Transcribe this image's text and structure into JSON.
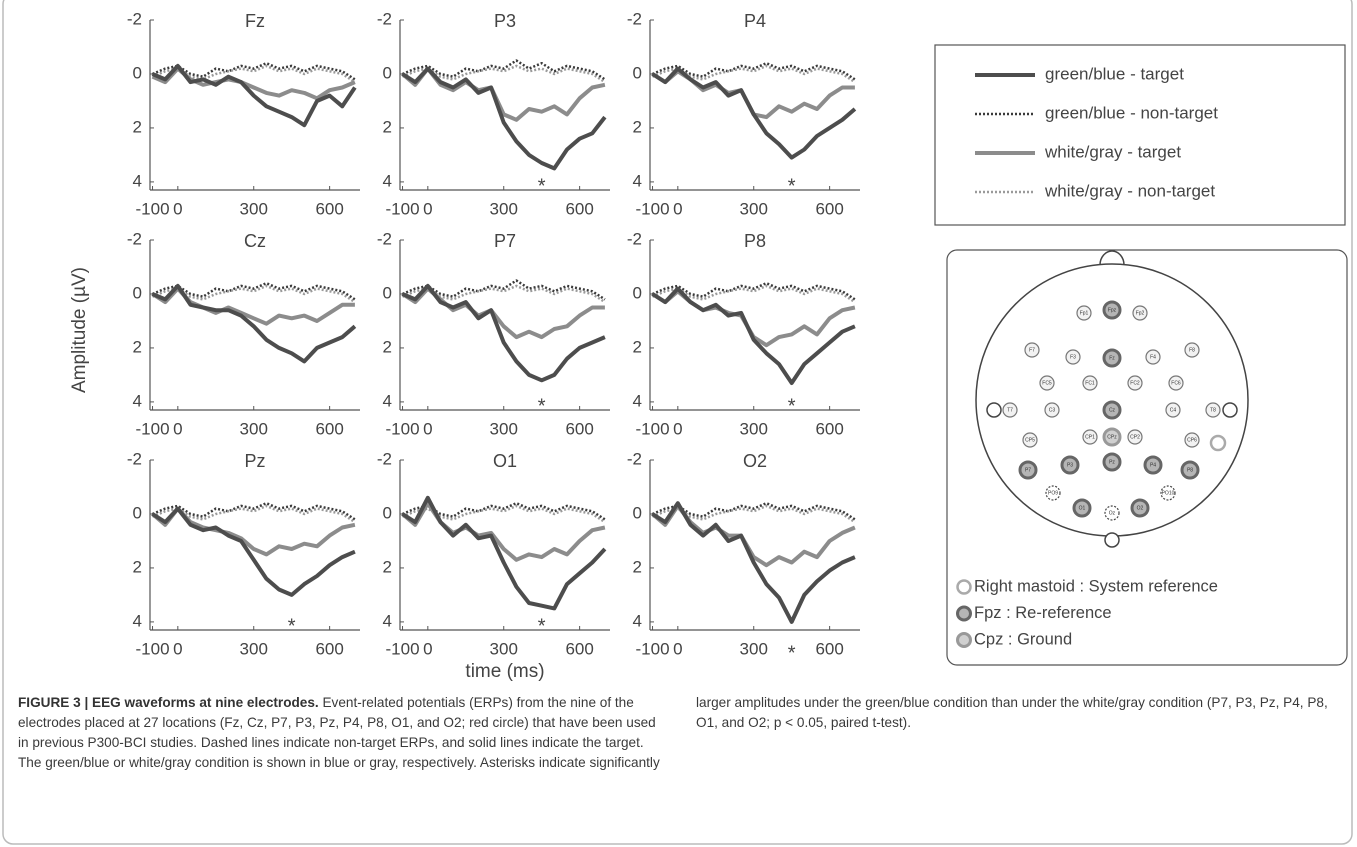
{
  "chart_data": {
    "type": "line",
    "y_label": "Amplitude (µV)",
    "x_label": "time (ms)",
    "x": [
      -100,
      -50,
      0,
      50,
      100,
      150,
      200,
      250,
      300,
      350,
      400,
      450,
      500,
      550,
      600,
      650,
      700
    ],
    "xlim": [
      -110,
      720
    ],
    "xticks": [
      -100,
      0,
      300,
      600
    ],
    "ylim": [
      -2,
      4.3
    ],
    "yticks": [
      -2,
      0,
      2,
      4
    ],
    "y_reversed": true,
    "series": [
      {
        "name": "green/blue - target",
        "color": "#4d4d4d",
        "dashed": false
      },
      {
        "name": "green/blue - non-target",
        "color": "#3a3a3a",
        "dashed": true
      },
      {
        "name": "white/gray - target",
        "color": "#8c8c8c",
        "dashed": false
      },
      {
        "name": "white/gray - non-target",
        "color": "#9a9a9a",
        "dashed": true
      }
    ],
    "panels": [
      {
        "title": "Fz",
        "values": [
          [
            0,
            0.2,
            -0.3,
            0.3,
            0.2,
            0.4,
            0.1,
            0.3,
            0.8,
            1.2,
            1.4,
            1.6,
            1.9,
            1.0,
            0.8,
            1.2,
            0.5
          ],
          [
            0,
            -0.2,
            -0.3,
            0,
            0.1,
            -0.2,
            -0.1,
            -0.3,
            -0.2,
            -0.4,
            -0.2,
            -0.3,
            -0.1,
            -0.3,
            -0.2,
            -0.1,
            0.2
          ],
          [
            0.1,
            0.3,
            -0.2,
            0.2,
            0.4,
            0.3,
            0.2,
            0.3,
            0.5,
            0.7,
            0.8,
            0.6,
            0.7,
            0.9,
            0.6,
            0.5,
            0.3
          ],
          [
            0.1,
            -0.1,
            -0.2,
            0.1,
            0.2,
            0,
            -0.1,
            -0.2,
            -0.1,
            -0.3,
            -0.1,
            -0.2,
            0,
            -0.2,
            -0.1,
            0,
            0.3
          ]
        ],
        "annotations": []
      },
      {
        "title": "P3",
        "values": [
          [
            0,
            0.3,
            -0.2,
            0.3,
            0.5,
            0.2,
            0.7,
            0.5,
            1.8,
            2.5,
            3.0,
            3.3,
            3.5,
            2.8,
            2.4,
            2.2,
            1.6
          ],
          [
            0,
            -0.2,
            -0.3,
            0,
            0.1,
            -0.2,
            -0.1,
            -0.3,
            -0.2,
            -0.5,
            -0.2,
            -0.4,
            -0.1,
            -0.3,
            -0.2,
            -0.1,
            0.2
          ],
          [
            0,
            0.4,
            -0.2,
            0.4,
            0.6,
            0.3,
            0.6,
            0.5,
            1.5,
            1.7,
            1.3,
            1.4,
            1.2,
            1.5,
            0.9,
            0.5,
            0.4
          ],
          [
            0.1,
            -0.1,
            -0.2,
            0.1,
            0.2,
            0,
            -0.1,
            -0.2,
            -0.1,
            -0.3,
            -0.1,
            -0.2,
            0,
            -0.2,
            -0.1,
            0,
            0.3
          ]
        ],
        "annotations": [
          {
            "text": "*",
            "x": 450,
            "y": 3.9
          }
        ]
      },
      {
        "title": "P4",
        "values": [
          [
            0,
            0.3,
            -0.2,
            0.2,
            0.5,
            0.3,
            0.8,
            0.6,
            1.5,
            2.2,
            2.6,
            3.1,
            2.8,
            2.3,
            2.0,
            1.7,
            1.3
          ],
          [
            0,
            -0.2,
            -0.3,
            0,
            0.1,
            -0.2,
            -0.1,
            -0.3,
            -0.2,
            -0.4,
            -0.2,
            -0.3,
            -0.1,
            -0.3,
            -0.2,
            -0.1,
            0.2
          ],
          [
            0,
            0.3,
            -0.1,
            0.2,
            0.6,
            0.4,
            0.7,
            0.6,
            1.5,
            1.6,
            1.2,
            1.4,
            1.1,
            1.3,
            0.8,
            0.5,
            0.5
          ],
          [
            0.1,
            -0.1,
            -0.2,
            0.1,
            0.2,
            0,
            -0.1,
            -0.2,
            -0.1,
            -0.3,
            -0.1,
            -0.2,
            0,
            -0.2,
            -0.1,
            0,
            0.3
          ]
        ],
        "annotations": [
          {
            "text": "*",
            "x": 450,
            "y": 3.9
          }
        ]
      },
      {
        "title": "Cz",
        "values": [
          [
            0,
            0.2,
            -0.3,
            0.4,
            0.5,
            0.6,
            0.6,
            0.8,
            1.2,
            1.7,
            2.0,
            2.2,
            2.5,
            2.0,
            1.8,
            1.6,
            1.2
          ],
          [
            0,
            -0.2,
            -0.3,
            0,
            0.1,
            -0.2,
            -0.1,
            -0.3,
            -0.2,
            -0.4,
            -0.2,
            -0.3,
            -0.1,
            -0.3,
            -0.2,
            -0.1,
            0.2
          ],
          [
            0,
            0.3,
            -0.2,
            0.3,
            0.5,
            0.7,
            0.5,
            0.7,
            0.9,
            1.1,
            0.8,
            0.9,
            0.8,
            1.0,
            0.7,
            0.4,
            0.4
          ],
          [
            0.1,
            -0.1,
            -0.2,
            0.1,
            0.2,
            0,
            -0.1,
            -0.2,
            -0.1,
            -0.3,
            -0.1,
            -0.2,
            0,
            -0.2,
            -0.1,
            0,
            0.3
          ]
        ],
        "annotations": []
      },
      {
        "title": "P7",
        "values": [
          [
            0,
            0.2,
            -0.3,
            0.3,
            0.5,
            0.3,
            0.9,
            0.6,
            1.8,
            2.5,
            3.0,
            3.2,
            3.0,
            2.4,
            2.0,
            1.8,
            1.6
          ],
          [
            0,
            -0.2,
            -0.3,
            0,
            0.1,
            -0.2,
            -0.1,
            -0.3,
            -0.2,
            -0.5,
            -0.2,
            -0.3,
            -0.1,
            -0.3,
            -0.2,
            -0.1,
            0.2
          ],
          [
            0,
            0.3,
            -0.2,
            0.2,
            0.6,
            0.4,
            0.8,
            0.6,
            1.2,
            1.6,
            1.4,
            1.6,
            1.3,
            1.2,
            0.8,
            0.5,
            0.5
          ],
          [
            0.1,
            -0.1,
            -0.2,
            0.1,
            0.2,
            0,
            -0.1,
            -0.2,
            -0.1,
            -0.3,
            -0.1,
            -0.2,
            0,
            -0.2,
            -0.1,
            0,
            0.3
          ]
        ],
        "annotations": [
          {
            "text": "*",
            "x": 450,
            "y": 3.9
          }
        ]
      },
      {
        "title": "P8",
        "values": [
          [
            0,
            0.3,
            -0.2,
            0.3,
            0.6,
            0.4,
            0.8,
            0.7,
            1.7,
            2.2,
            2.6,
            3.3,
            2.6,
            2.2,
            1.8,
            1.4,
            1.2
          ],
          [
            0,
            -0.2,
            -0.3,
            0,
            0.1,
            -0.2,
            -0.1,
            -0.3,
            -0.2,
            -0.4,
            -0.2,
            -0.3,
            -0.1,
            -0.3,
            -0.2,
            -0.1,
            0.2
          ],
          [
            0,
            0.3,
            -0.1,
            0.3,
            0.6,
            0.5,
            0.7,
            0.8,
            1.6,
            1.9,
            1.6,
            1.5,
            1.2,
            1.5,
            0.9,
            0.6,
            0.5
          ],
          [
            0.1,
            -0.1,
            -0.2,
            0.1,
            0.2,
            0,
            -0.1,
            -0.2,
            -0.1,
            -0.3,
            -0.1,
            -0.2,
            0,
            -0.2,
            -0.1,
            0,
            0.3
          ]
        ],
        "annotations": [
          {
            "text": "*",
            "x": 450,
            "y": 3.9
          }
        ]
      },
      {
        "title": "Pz",
        "values": [
          [
            0,
            0.3,
            -0.2,
            0.4,
            0.6,
            0.5,
            0.8,
            1.0,
            1.7,
            2.4,
            2.8,
            3.0,
            2.6,
            2.3,
            1.9,
            1.6,
            1.4
          ],
          [
            0,
            -0.2,
            -0.3,
            0,
            0.1,
            -0.2,
            -0.1,
            -0.3,
            -0.2,
            -0.4,
            -0.2,
            -0.3,
            -0.1,
            -0.3,
            -0.2,
            -0.1,
            0.2
          ],
          [
            0,
            0.4,
            -0.2,
            0.3,
            0.5,
            0.6,
            0.7,
            0.9,
            1.3,
            1.5,
            1.2,
            1.3,
            1.1,
            1.2,
            0.8,
            0.5,
            0.4
          ],
          [
            0.1,
            -0.1,
            -0.2,
            0.1,
            0.2,
            0,
            -0.1,
            -0.2,
            -0.1,
            -0.3,
            -0.1,
            -0.2,
            0,
            -0.2,
            -0.1,
            0,
            0.3
          ]
        ],
        "annotations": [
          {
            "text": "*",
            "x": 450,
            "y": 3.9
          }
        ]
      },
      {
        "title": "O1",
        "values": [
          [
            0,
            0.3,
            -0.6,
            0.3,
            0.8,
            0.4,
            0.9,
            0.8,
            1.8,
            2.7,
            3.3,
            3.4,
            3.5,
            2.6,
            2.2,
            1.8,
            1.3
          ],
          [
            0,
            -0.2,
            -0.3,
            0,
            0.1,
            -0.2,
            -0.1,
            -0.3,
            -0.2,
            -0.4,
            -0.2,
            -0.3,
            -0.1,
            -0.3,
            -0.2,
            -0.1,
            0.2
          ],
          [
            0,
            0.4,
            -0.4,
            0.3,
            0.7,
            0.5,
            0.8,
            0.7,
            1.3,
            1.7,
            1.5,
            1.6,
            1.3,
            1.5,
            1.0,
            0.6,
            0.5
          ],
          [
            0.1,
            -0.1,
            -0.2,
            0.1,
            0.2,
            0,
            -0.1,
            -0.2,
            -0.1,
            -0.3,
            -0.1,
            -0.2,
            0,
            -0.2,
            -0.1,
            0,
            0.3
          ]
        ],
        "annotations": [
          {
            "text": "*",
            "x": 450,
            "y": 3.9
          }
        ]
      },
      {
        "title": "O2",
        "values": [
          [
            0,
            0.3,
            -0.4,
            0.4,
            0.8,
            0.4,
            1.0,
            0.8,
            1.8,
            2.6,
            3.1,
            4.0,
            3.0,
            2.5,
            2.1,
            1.8,
            1.6
          ],
          [
            0,
            -0.2,
            -0.3,
            0,
            0.1,
            -0.2,
            -0.1,
            -0.3,
            -0.2,
            -0.4,
            -0.2,
            -0.3,
            -0.1,
            -0.3,
            -0.2,
            -0.1,
            0.2
          ],
          [
            0,
            0.4,
            -0.3,
            0.3,
            0.7,
            0.5,
            0.8,
            0.8,
            1.6,
            1.9,
            1.6,
            1.8,
            1.4,
            1.6,
            1.0,
            0.7,
            0.5
          ],
          [
            0.1,
            -0.1,
            -0.2,
            0.1,
            0.2,
            0,
            -0.1,
            -0.2,
            -0.1,
            -0.3,
            -0.1,
            -0.2,
            0,
            -0.2,
            -0.1,
            0,
            0.3
          ]
        ],
        "annotations": [
          {
            "text": "*",
            "x": 450,
            "y": 4.9
          }
        ]
      }
    ]
  },
  "electrode_map": {
    "electrodes": [
      {
        "label": "Fp1",
        "kind": "plain"
      },
      {
        "label": "Fpz",
        "kind": "reference"
      },
      {
        "label": "Fp2",
        "kind": "plain"
      },
      {
        "label": "F7",
        "kind": "plain"
      },
      {
        "label": "F3",
        "kind": "plain"
      },
      {
        "label": "Fz",
        "kind": "recorded"
      },
      {
        "label": "F4",
        "kind": "plain"
      },
      {
        "label": "F8",
        "kind": "plain"
      },
      {
        "label": "FC5",
        "kind": "plain"
      },
      {
        "label": "FC1",
        "kind": "plain"
      },
      {
        "label": "FC2",
        "kind": "plain"
      },
      {
        "label": "FC6",
        "kind": "plain"
      },
      {
        "label": "T7",
        "kind": "plain"
      },
      {
        "label": "C3",
        "kind": "plain"
      },
      {
        "label": "Cz",
        "kind": "recorded"
      },
      {
        "label": "C4",
        "kind": "plain"
      },
      {
        "label": "T8",
        "kind": "plain"
      },
      {
        "label": "CP5",
        "kind": "plain"
      },
      {
        "label": "CP1",
        "kind": "plain"
      },
      {
        "label": "CPz",
        "kind": "ground"
      },
      {
        "label": "CP2",
        "kind": "plain"
      },
      {
        "label": "CP6",
        "kind": "plain"
      },
      {
        "label": "P7",
        "kind": "recorded"
      },
      {
        "label": "P3",
        "kind": "recorded"
      },
      {
        "label": "Pz",
        "kind": "recorded"
      },
      {
        "label": "P4",
        "kind": "recorded"
      },
      {
        "label": "P8",
        "kind": "recorded"
      },
      {
        "label": "PO9",
        "kind": "unused"
      },
      {
        "label": "PO10",
        "kind": "unused"
      },
      {
        "label": "O1",
        "kind": "recorded"
      },
      {
        "label": "Oz",
        "kind": "unused"
      },
      {
        "label": "O2",
        "kind": "recorded"
      },
      {
        "label": "",
        "kind": "mastoid"
      }
    ],
    "legend": [
      {
        "text": "Right mastoid : System reference",
        "kind": "mastoid"
      },
      {
        "text": "Fpz : Re-reference",
        "kind": "reference"
      },
      {
        "text": "Cpz : Ground",
        "kind": "ground"
      }
    ]
  },
  "caption": {
    "label": "FIGURE 3 | EEG waveforms at nine electrodes.",
    "text": "Event-related potentials (ERPs) from the nine of the electrodes placed at 27 locations (Fz, Cz, P7, P3, Pz, P4, P8, O1, and O2; red circle) that have been used in previous P300-BCI studies. Dashed lines indicate non-target ERPs, and solid lines indicate the target. The green/blue or white/gray condition is shown in blue or gray, respectively. Asterisks indicate significantly larger amplitudes under the green/blue condition than under the white/gray condition (P7, P3, Pz, P4, P8, O1, and O2; p < 0.05, paired t-test)."
  }
}
